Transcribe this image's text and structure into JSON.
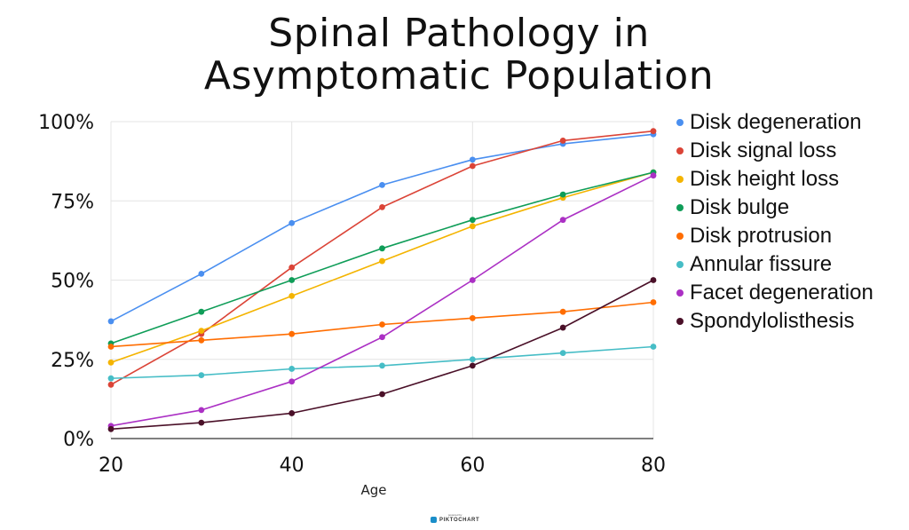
{
  "title_lines": [
    "Spinal Pathology in",
    "Asymptomatic Population"
  ],
  "branding": {
    "powered_by": "powered by",
    "name": "PIKTOCHART"
  },
  "chart_data": {
    "type": "line",
    "title": "Spinal Pathology in Asymptomatic Population",
    "xlabel": "Age",
    "ylabel": "",
    "x": [
      20,
      30,
      40,
      50,
      60,
      70,
      80
    ],
    "xlim": [
      20,
      80
    ],
    "ylim": [
      0,
      100
    ],
    "x_ticks": [
      20,
      40,
      60,
      80
    ],
    "x_tick_labels": [
      "20",
      "40",
      "60",
      "80"
    ],
    "y_ticks": [
      0,
      25,
      50,
      75,
      100
    ],
    "y_tick_labels": [
      "0%",
      "25%",
      "50%",
      "75%",
      "100%"
    ],
    "grid": true,
    "legend_position": "right",
    "series": [
      {
        "name": "Disk degeneration",
        "color": "#4a8ff0",
        "values": [
          37,
          52,
          68,
          80,
          88,
          93,
          96
        ]
      },
      {
        "name": "Disk signal loss",
        "color": "#db4437",
        "values": [
          17,
          33,
          54,
          73,
          86,
          94,
          97
        ]
      },
      {
        "name": "Disk height loss",
        "color": "#f4b400",
        "values": [
          24,
          34,
          45,
          56,
          67,
          76,
          84
        ]
      },
      {
        "name": "Disk bulge",
        "color": "#0f9d58",
        "values": [
          30,
          40,
          50,
          60,
          69,
          77,
          84
        ]
      },
      {
        "name": "Disk protrusion",
        "color": "#ff6d01",
        "values": [
          29,
          31,
          33,
          36,
          38,
          40,
          43
        ]
      },
      {
        "name": "Annular fissure",
        "color": "#46bdc6",
        "values": [
          19,
          20,
          22,
          23,
          25,
          27,
          29
        ]
      },
      {
        "name": "Facet degeneration",
        "color": "#ab30c4",
        "values": [
          4,
          9,
          18,
          32,
          50,
          69,
          83
        ]
      },
      {
        "name": "Spondylolisthesis",
        "color": "#4a1028",
        "values": [
          3,
          5,
          8,
          14,
          23,
          35,
          50
        ]
      }
    ]
  }
}
